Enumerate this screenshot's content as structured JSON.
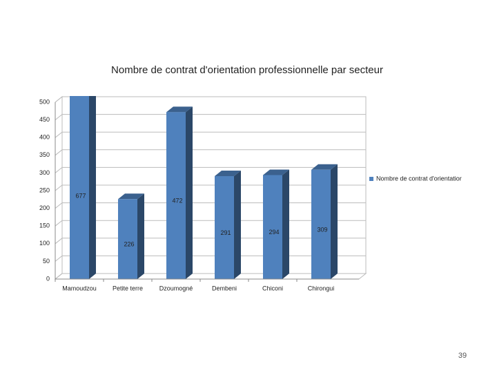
{
  "chart_data": {
    "type": "bar3d",
    "title": "Nombre de contrat d'orientation professionnelle par secteur",
    "categories": [
      "Mamoudzou",
      "Petite terre",
      "Dzoumogné",
      "Dembeni",
      "Chiconi",
      "Chirongui"
    ],
    "series": [
      {
        "name": "Nombre de contrat d'orientatior",
        "color": "#4f81bd",
        "values": [
          677,
          226,
          472,
          291,
          294,
          309
        ]
      }
    ],
    "ylim": [
      0,
      500
    ],
    "yticks": [
      0,
      50,
      100,
      150,
      200,
      250,
      300,
      350,
      400,
      450,
      500
    ],
    "grid": true,
    "legend": "right",
    "data_labels": true
  },
  "slide_number": "39"
}
